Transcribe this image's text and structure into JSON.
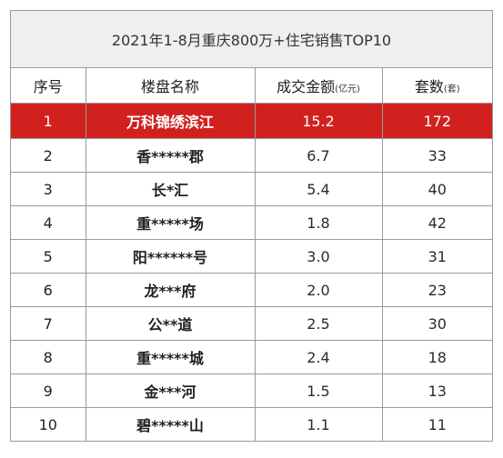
{
  "title": "2021年1-8月重庆800万+住宅销售TOP10",
  "headers": {
    "rank": "序号",
    "name": "楼盘名称",
    "amount": "成交金额",
    "amount_unit": "(亿元)",
    "units": "套数",
    "units_unit": "(套)"
  },
  "highlight_color": "#d0211f",
  "rows": [
    {
      "rank": "1",
      "name": "万科锦绣滨江",
      "amount": "15.2",
      "units": "172"
    },
    {
      "rank": "2",
      "name": "香*****郡",
      "amount": "6.7",
      "units": "33"
    },
    {
      "rank": "3",
      "name": "长*汇",
      "amount": "5.4",
      "units": "40"
    },
    {
      "rank": "4",
      "name": "重*****场",
      "amount": "1.8",
      "units": "42"
    },
    {
      "rank": "5",
      "name": "阳******号",
      "amount": "3.0",
      "units": "31"
    },
    {
      "rank": "6",
      "name": "龙***府",
      "amount": "2.0",
      "units": "23"
    },
    {
      "rank": "7",
      "name": "公**道",
      "amount": "2.5",
      "units": "30"
    },
    {
      "rank": "8",
      "name": "重*****城",
      "amount": "2.4",
      "units": "18"
    },
    {
      "rank": "9",
      "name": "金***河",
      "amount": "1.5",
      "units": "13"
    },
    {
      "rank": "10",
      "name": "碧*****山",
      "amount": "1.1",
      "units": "11"
    }
  ]
}
